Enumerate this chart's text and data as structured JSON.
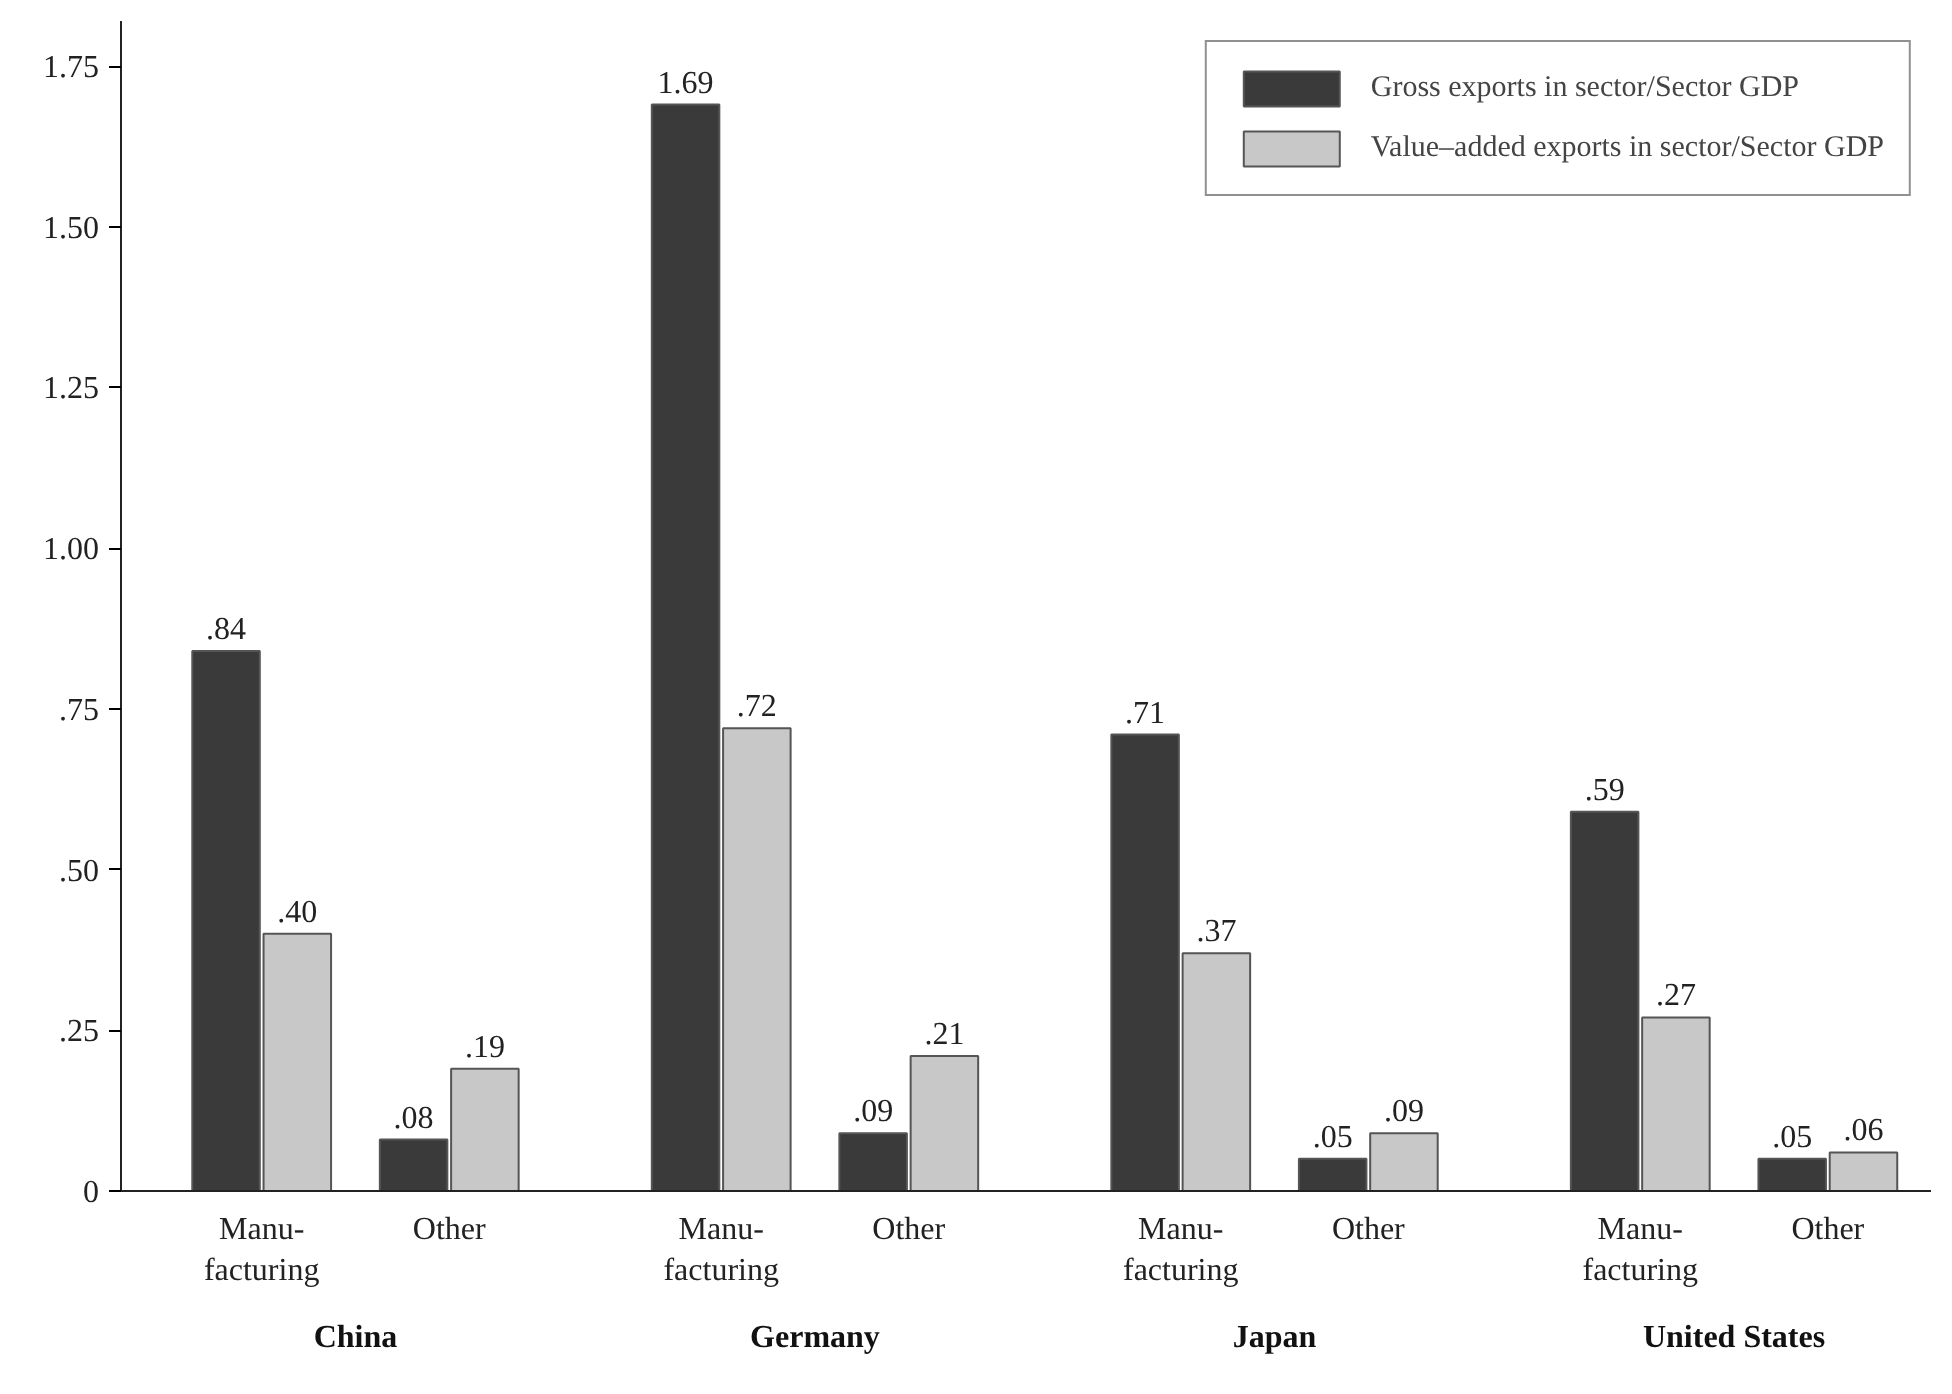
{
  "chart_data": {
    "type": "bar",
    "categories": [
      "Manu-\nfacturing",
      "Other",
      "Manu-\nfacturing",
      "Other",
      "Manu-\nfacturing",
      "Other",
      "Manu-\nfacturing",
      "Other"
    ],
    "series": [
      {
        "name": "Gross exports in sector/Sector GDP",
        "color": "#3a3a3a",
        "values": [
          0.84,
          0.08,
          1.69,
          0.09,
          0.71,
          0.05,
          0.59,
          0.05
        ],
        "value_labels": [
          ".84",
          ".08",
          "1.69",
          ".09",
          ".71",
          ".05",
          ".59",
          ".05"
        ]
      },
      {
        "name": "Value–added exports in sector/Sector GDP",
        "color": "#c8c8c8",
        "values": [
          0.4,
          0.19,
          0.72,
          0.21,
          0.37,
          0.09,
          0.27,
          0.06
        ],
        "value_labels": [
          ".40",
          ".19",
          ".72",
          ".21",
          ".37",
          ".09",
          ".27",
          ".06"
        ]
      }
    ],
    "annotations": [
      "China",
      "Germany",
      "Japan",
      "United States"
    ],
    "ylim": [
      0,
      1.82
    ],
    "yticks": [
      {
        "value": 0,
        "label": "0"
      },
      {
        "value": 0.25,
        "label": ".25"
      },
      {
        "value": 0.5,
        "label": ".50"
      },
      {
        "value": 0.75,
        "label": ".75"
      },
      {
        "value": 1.0,
        "label": "1.00"
      },
      {
        "value": 1.25,
        "label": "1.25"
      },
      {
        "value": 1.5,
        "label": "1.50"
      },
      {
        "value": 1.75,
        "label": "1.75"
      }
    ],
    "grid": false,
    "legend": "top right"
  }
}
